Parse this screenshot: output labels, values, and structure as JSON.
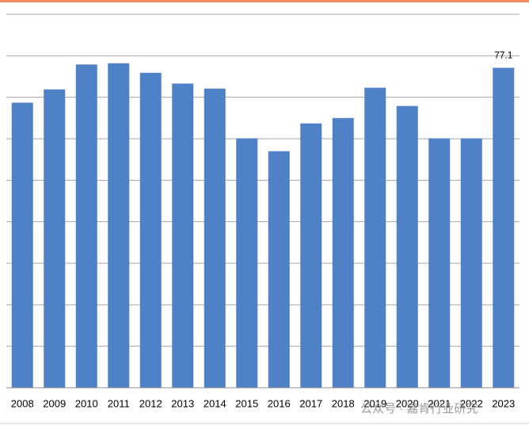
{
  "chart_data": {
    "type": "bar",
    "categories": [
      "2008",
      "2009",
      "2010",
      "2011",
      "2012",
      "2013",
      "2014",
      "2015",
      "2016",
      "2017",
      "2018",
      "2019",
      "2020",
      "2021",
      "2022",
      "2023"
    ],
    "values": [
      68.7,
      71.9,
      77.9,
      78.2,
      75.9,
      73.3,
      72.1,
      60.1,
      57.0,
      63.7,
      65.0,
      72.3,
      67.9,
      60.1,
      60.1,
      77.1
    ],
    "value_labels": [
      null,
      null,
      null,
      null,
      null,
      null,
      null,
      null,
      null,
      null,
      null,
      null,
      null,
      null,
      null,
      "77.1"
    ],
    "color": "#4f81c7",
    "ylim": [
      0,
      90
    ],
    "yticks": [
      10,
      20,
      30,
      40,
      50,
      60,
      70,
      80,
      90
    ],
    "grid": true,
    "watermark": "公众号 · 嘉肯行业研究"
  }
}
